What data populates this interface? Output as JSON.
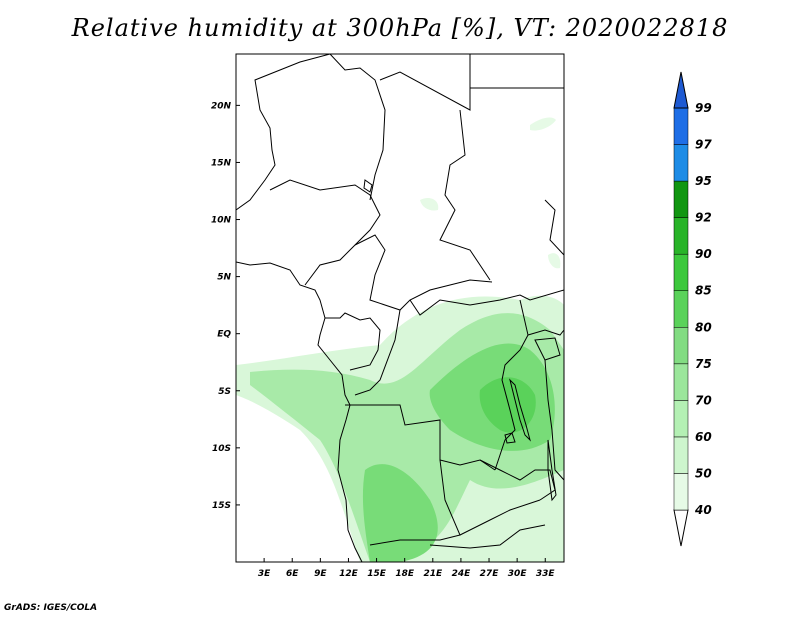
{
  "title": "Relative humidity at 300hPa [%], VT: 2020022818",
  "footer": "GrADS: IGES/COLA",
  "map": {
    "lon_range": [
      0,
      35
    ],
    "lat_range": [
      -20,
      24.5
    ],
    "x_ticks": [
      "3E",
      "6E",
      "9E",
      "12E",
      "15E",
      "18E",
      "21E",
      "24E",
      "27E",
      "30E",
      "33E"
    ],
    "y_ticks": [
      "20N",
      "15N",
      "10N",
      "5N",
      "EQ",
      "5S",
      "10S",
      "15S"
    ]
  },
  "colorbar": {
    "levels": [
      "40",
      "50",
      "60",
      "70",
      "75",
      "80",
      "85",
      "90",
      "92",
      "95",
      "97",
      "99"
    ],
    "colors": [
      "#e6fae6",
      "#cdf5cd",
      "#b4f0b4",
      "#9be69b",
      "#82dc82",
      "#5ad25a",
      "#3cc83c",
      "#28b428",
      "#119611",
      "#1e8ce6",
      "#1e6ee6",
      "#1e5ad2"
    ],
    "under_color": "#ffffff",
    "over_color": "#1e5ad2"
  }
}
